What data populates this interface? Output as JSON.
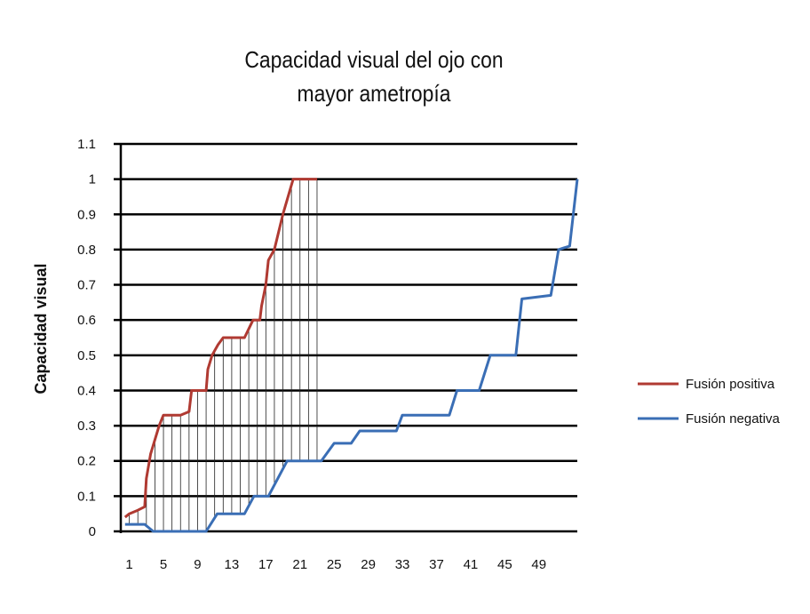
{
  "chart_data": {
    "type": "line",
    "title_lines": [
      "Capacidad visual del ojo con",
      "mayor ametropía"
    ],
    "ylabel": "Capacidad visual",
    "xlabel": "",
    "ylim": [
      0,
      1.1
    ],
    "y_ticks": [
      0,
      0.1,
      0.2,
      0.3,
      0.4,
      0.5,
      0.6,
      0.7,
      0.8,
      0.9,
      1,
      1.1
    ],
    "x_ticks": [
      1,
      5,
      9,
      13,
      17,
      21,
      25,
      29,
      33,
      37,
      41,
      45,
      49
    ],
    "xlim": [
      0,
      53.5
    ],
    "grid": true,
    "legend_position": "right",
    "hatched_region": "vertical lines between Fusión positiva and Fusión negativa, x from 1 to 23",
    "series": [
      {
        "name": "Fusión positiva",
        "color": "#b03a32",
        "points": [
          [
            0.5,
            0.04
          ],
          [
            1,
            0.05
          ],
          [
            2,
            0.06
          ],
          [
            2.8,
            0.07
          ],
          [
            3,
            0.15
          ],
          [
            3.5,
            0.22
          ],
          [
            4.5,
            0.3
          ],
          [
            5,
            0.33
          ],
          [
            7,
            0.33
          ],
          [
            8,
            0.34
          ],
          [
            8.3,
            0.4
          ],
          [
            10,
            0.4
          ],
          [
            10.2,
            0.46
          ],
          [
            10.7,
            0.5
          ],
          [
            11.4,
            0.53
          ],
          [
            12,
            0.55
          ],
          [
            14.5,
            0.55
          ],
          [
            15.5,
            0.6
          ],
          [
            16.3,
            0.6
          ],
          [
            16.5,
            0.64
          ],
          [
            17,
            0.7
          ],
          [
            17.3,
            0.77
          ],
          [
            18,
            0.8
          ],
          [
            18.5,
            0.85
          ],
          [
            19,
            0.9
          ],
          [
            20.2,
            1
          ],
          [
            23,
            1
          ]
        ]
      },
      {
        "name": "Fusión negativa",
        "color": "#3a6eb5",
        "points": [
          [
            0.5,
            0.02
          ],
          [
            2.8,
            0.02
          ],
          [
            3.8,
            0
          ],
          [
            10,
            0
          ],
          [
            11.3,
            0.05
          ],
          [
            14.5,
            0.05
          ],
          [
            15.6,
            0.1
          ],
          [
            17.3,
            0.1
          ],
          [
            19.5,
            0.2
          ],
          [
            23.5,
            0.2
          ],
          [
            25,
            0.25
          ],
          [
            27,
            0.25
          ],
          [
            28,
            0.285
          ],
          [
            32.3,
            0.285
          ],
          [
            33,
            0.33
          ],
          [
            38.5,
            0.33
          ],
          [
            39.4,
            0.4
          ],
          [
            42,
            0.4
          ],
          [
            43.3,
            0.5
          ],
          [
            46.3,
            0.5
          ],
          [
            47,
            0.66
          ],
          [
            50.4,
            0.67
          ],
          [
            51.3,
            0.8
          ],
          [
            52.6,
            0.81
          ],
          [
            53.5,
            1
          ]
        ]
      }
    ]
  }
}
